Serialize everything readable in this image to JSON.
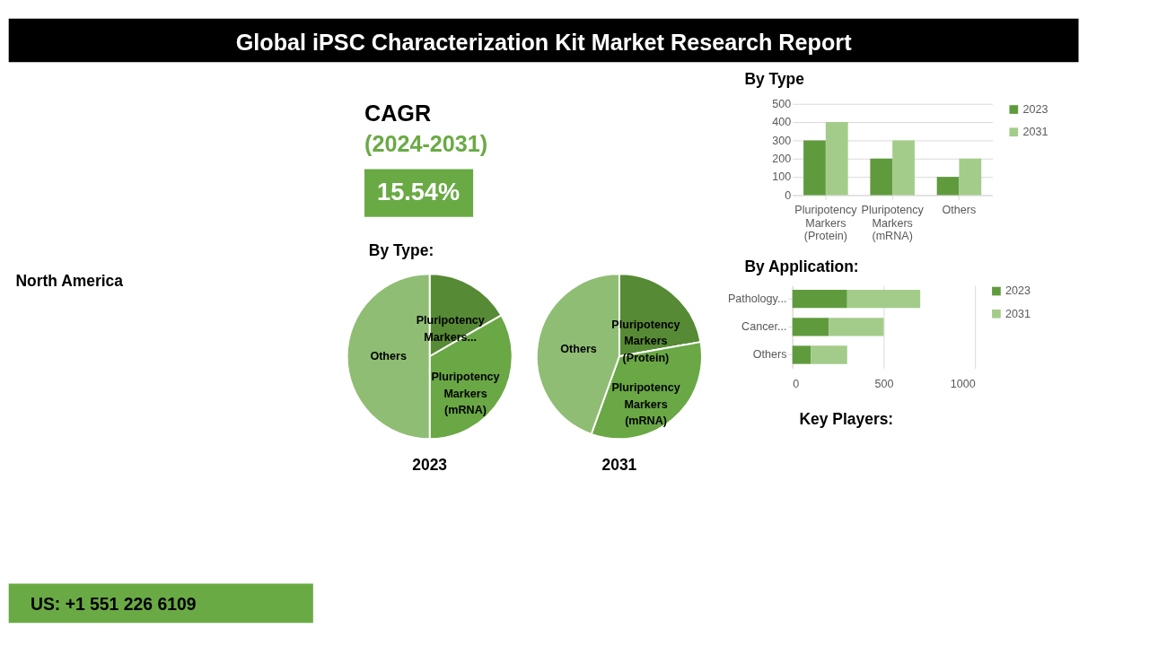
{
  "chart_data": [
    {
      "type": "other",
      "title": "Global iPSC Characterization Kit Market Research Report"
    },
    {
      "type": "other",
      "annotations": [
        "North America"
      ]
    },
    {
      "type": "other",
      "title": "CAGR",
      "subtitle": "(2024-2031)",
      "annotations": [
        "15.54%"
      ]
    },
    {
      "type": "bar",
      "title": "By Type",
      "categories": [
        "Pluripotency Markers (Protein)",
        "Pluripotency Markers (mRNA)",
        "Others"
      ],
      "series": [
        {
          "name": "2023",
          "color": "#5f9b3d",
          "values": [
            300,
            200,
            100
          ]
        },
        {
          "name": "2031",
          "color": "#a3cc8a",
          "values": [
            400,
            300,
            200
          ]
        }
      ],
      "ylim": [
        0,
        500
      ],
      "yticks": [
        0,
        100,
        200,
        300,
        400,
        500
      ],
      "grid": "y",
      "legend": "right"
    },
    {
      "type": "other",
      "title": "By Type:"
    },
    {
      "type": "pie",
      "title": "2023",
      "categories": [
        "Pluripotency Markers...",
        "Pluripotency Markers (mRNA)",
        "Others"
      ],
      "values": [
        16.7,
        33.3,
        50
      ],
      "colors": [
        "#578a35",
        "#6aa745",
        "#8fbd74"
      ],
      "legend": false
    },
    {
      "type": "pie",
      "title": "2031",
      "categories": [
        "Pluripotency Markers (Protein)",
        "Pluripotency Markers (mRNA)",
        "Others"
      ],
      "values": [
        22.2,
        33.3,
        44.5
      ],
      "colors": [
        "#578a35",
        "#6aa745",
        "#8fbd74"
      ],
      "legend": false
    },
    {
      "type": "bar",
      "title": "By Application:",
      "orientation": "horizontal",
      "stacked": true,
      "categories": [
        "Pathology...",
        "Cancer...",
        "Others"
      ],
      "series": [
        {
          "name": "2023",
          "color": "#5f9b3d",
          "values": [
            300,
            200,
            100
          ]
        },
        {
          "name": "2031",
          "color": "#a3cc8a",
          "values": [
            400,
            300,
            200
          ]
        }
      ],
      "xlim": [
        0,
        1000
      ],
      "xticks": [
        0,
        500,
        1000
      ],
      "grid": "x",
      "legend": "right"
    },
    {
      "type": "other",
      "title": "Key Players:"
    },
    {
      "type": "other",
      "annotations": [
        "US: +1 551 226 6109"
      ]
    }
  ]
}
